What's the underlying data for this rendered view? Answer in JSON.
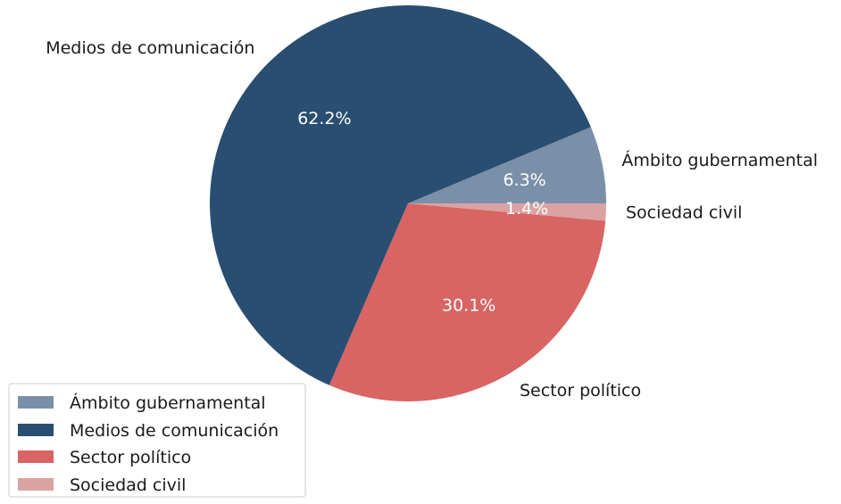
{
  "chart_data": {
    "type": "pie",
    "title": "",
    "slices": [
      {
        "label": "Ámbito gubernamental",
        "value": 6.3,
        "pct_label": "6.3%",
        "color": "#7a90a8"
      },
      {
        "label": "Medios de comunicación",
        "value": 62.2,
        "pct_label": "62.2%",
        "color": "#294e72"
      },
      {
        "label": "Sector político",
        "value": 30.1,
        "pct_label": "30.1%",
        "color": "#d86464"
      },
      {
        "label": "Sociedad civil",
        "value": 1.4,
        "pct_label": "1.4%",
        "color": "#dba2a2"
      }
    ],
    "start_angle_deg": 0,
    "direction": "counterclockwise",
    "legend": {
      "placement": "lower-left",
      "entries": [
        "Ámbito gubernamental",
        "Medios de comunicación",
        "Sector político",
        "Sociedad civil"
      ]
    }
  }
}
